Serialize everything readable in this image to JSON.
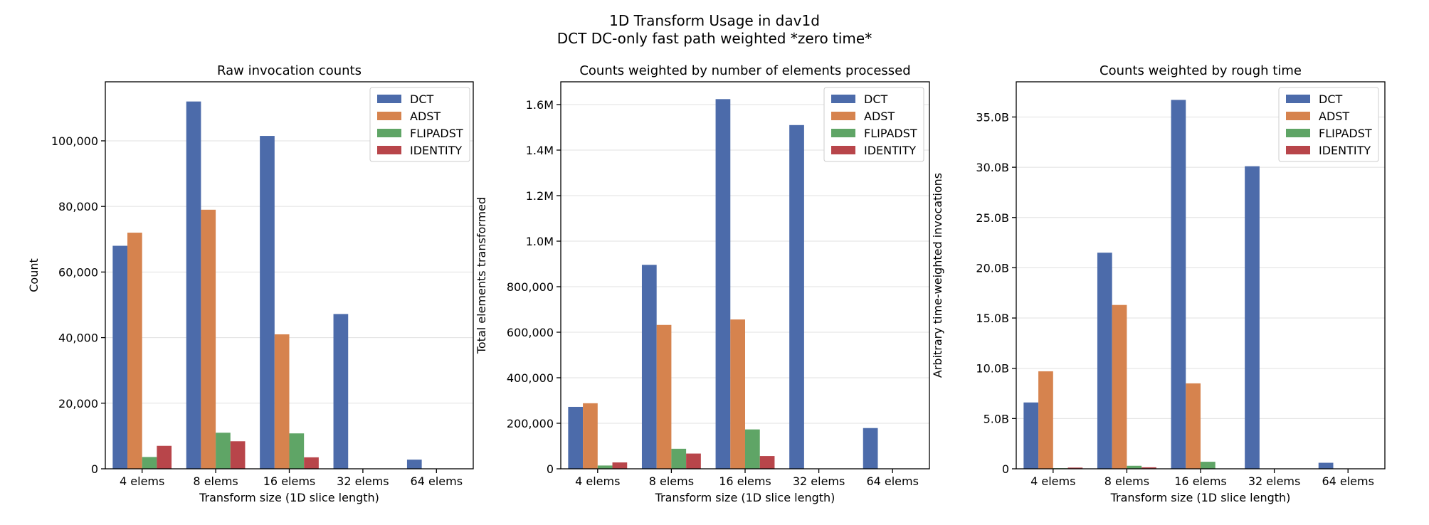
{
  "figure": {
    "title_line1": "1D Transform Usage in dav1d",
    "title_line2": "DCT DC-only fast path weighted *zero time*"
  },
  "colors": {
    "DCT": "#4c6baa",
    "ADST": "#d6834e",
    "FLIPADST": "#5fa566",
    "IDENTITY": "#b8454a"
  },
  "chart_data": [
    {
      "type": "bar",
      "title": "Raw invocation counts",
      "xlabel": "Transform size (1D slice length)",
      "ylabel": "Count",
      "categories": [
        "4 elems",
        "8 elems",
        "16 elems",
        "32 elems",
        "64 elems"
      ],
      "ylim": [
        0,
        118000
      ],
      "yticks": [
        0,
        20000,
        40000,
        60000,
        80000,
        100000
      ],
      "ytick_labels": [
        "0",
        "20,000",
        "40,000",
        "60,000",
        "80,000",
        "100,000"
      ],
      "grid": true,
      "legend_position": "top-right",
      "series": [
        {
          "name": "DCT",
          "values": [
            68000,
            112000,
            101500,
            47200,
            2800
          ]
        },
        {
          "name": "ADST",
          "values": [
            72000,
            79000,
            41000,
            0,
            0
          ]
        },
        {
          "name": "FLIPADST",
          "values": [
            3600,
            11000,
            10800,
            0,
            0
          ]
        },
        {
          "name": "IDENTITY",
          "values": [
            7000,
            8400,
            3500,
            0,
            0
          ]
        }
      ]
    },
    {
      "type": "bar",
      "title": "Counts weighted by number of elements processed",
      "xlabel": "Transform size (1D slice length)",
      "ylabel": "Total elements transformed",
      "categories": [
        "4 elems",
        "8 elems",
        "16 elems",
        "32 elems",
        "64 elems"
      ],
      "ylim": [
        0,
        1700000
      ],
      "yticks": [
        0,
        200000,
        400000,
        600000,
        800000,
        1000000,
        1200000,
        1400000,
        1600000
      ],
      "ytick_labels": [
        "0",
        "200,000",
        "400,000",
        "600,000",
        "800,000",
        "1.0M",
        "1.2M",
        "1.4M",
        "1.6M"
      ],
      "grid": true,
      "legend_position": "top-right",
      "series": [
        {
          "name": "DCT",
          "values": [
            272000,
            896000,
            1624000,
            1510000,
            179000
          ]
        },
        {
          "name": "ADST",
          "values": [
            288000,
            632000,
            656000,
            0,
            0
          ]
        },
        {
          "name": "FLIPADST",
          "values": [
            14400,
            88000,
            173000,
            0,
            0
          ]
        },
        {
          "name": "IDENTITY",
          "values": [
            28000,
            67000,
            56000,
            0,
            0
          ]
        }
      ]
    },
    {
      "type": "bar",
      "title": "Counts weighted by rough time",
      "xlabel": "Transform size (1D slice length)",
      "ylabel": "Arbitrary time-weighted invocations",
      "categories": [
        "4 elems",
        "8 elems",
        "16 elems",
        "32 elems",
        "64 elems"
      ],
      "ylim": [
        0,
        38500000000
      ],
      "yticks": [
        0,
        5000000000,
        10000000000,
        15000000000,
        20000000000,
        25000000000,
        30000000000,
        35000000000
      ],
      "ytick_labels": [
        "0",
        "5.0B",
        "10.0B",
        "15.0B",
        "20.0B",
        "25.0B",
        "30.0B",
        "35.0B"
      ],
      "grid": true,
      "legend_position": "top-right",
      "series": [
        {
          "name": "DCT",
          "values": [
            6600000000,
            21500000000,
            36700000000,
            30100000000,
            600000000
          ]
        },
        {
          "name": "ADST",
          "values": [
            9700000000,
            16300000000,
            8500000000,
            0,
            0
          ]
        },
        {
          "name": "FLIPADST",
          "values": [
            60000000,
            300000000,
            700000000,
            0,
            0
          ]
        },
        {
          "name": "IDENTITY",
          "values": [
            120000000,
            150000000,
            0,
            0,
            0
          ]
        }
      ]
    }
  ]
}
